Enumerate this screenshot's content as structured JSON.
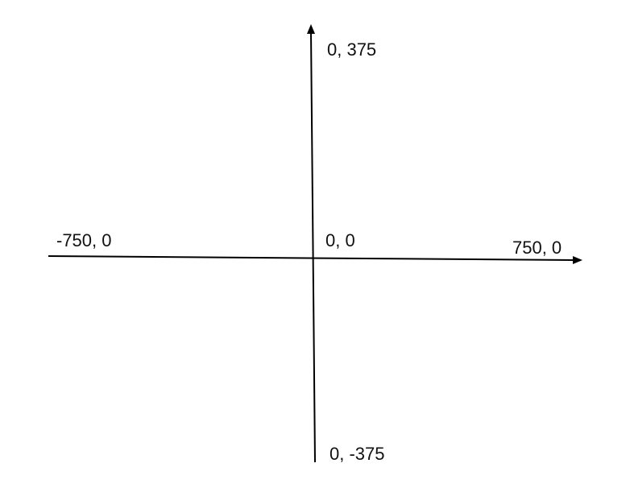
{
  "diagram": {
    "labels": {
      "top": "0, 375",
      "origin": "0, 0",
      "left": "-750, 0",
      "right": "750, 0",
      "bottom": "0, -375"
    },
    "colors": {
      "axis": "#000000",
      "text": "#111111",
      "background": "#ffffff"
    }
  }
}
